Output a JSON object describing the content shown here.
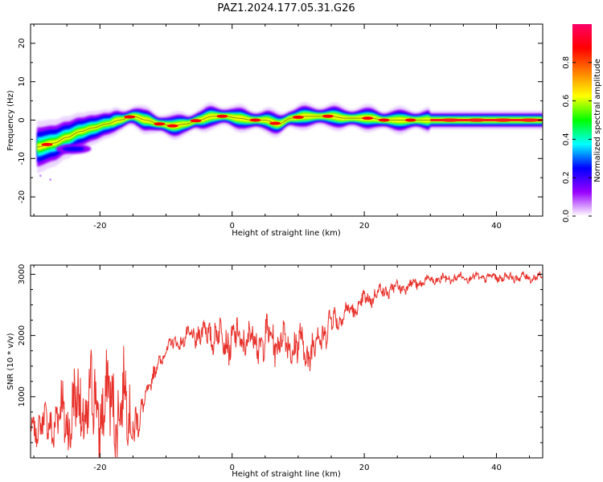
{
  "figure": {
    "title": "PAZ1.2024.177.05.31.G26"
  },
  "chart_data": [
    {
      "type": "heatmap",
      "xlabel": "Height of straight line (km)",
      "ylabel": "Frequency (Hz)",
      "xlim": [
        -30.5,
        47
      ],
      "ylim": [
        -25,
        25
      ],
      "xticks": [
        -20,
        0,
        20,
        40
      ],
      "yticks": [
        -20,
        -10,
        0,
        10,
        20
      ],
      "colorbar": {
        "label": "Normalized spectral amplitude",
        "range": [
          0,
          1
        ],
        "ticks": [
          "0.0",
          "0.2",
          "0.4",
          "0.6",
          "0.8"
        ],
        "colors": [
          "#ffffff",
          "#9900ff",
          "#0000ff",
          "#00ffff",
          "#00ff00",
          "#ffff00",
          "#ff7f00",
          "#ff0000",
          "#ff0066"
        ]
      },
      "ridge": {
        "x": [
          -29.5,
          -27,
          -25,
          -23,
          -21,
          -19,
          -17,
          -15,
          -13,
          -11,
          -9,
          -7,
          -5,
          -3,
          -1,
          1,
          3,
          5,
          7,
          9,
          11,
          13,
          15,
          17,
          19,
          21,
          23,
          25,
          27,
          30,
          35,
          40,
          47
        ],
        "y": [
          -7,
          -6,
          -4.5,
          -3,
          -2,
          -1,
          0,
          1,
          0,
          -1,
          -1.5,
          -1,
          0,
          1,
          1,
          0.5,
          0,
          0,
          -1,
          0.5,
          1,
          1,
          1,
          0.5,
          0.5,
          0.5,
          0,
          0,
          0,
          0,
          0,
          0,
          0
        ]
      }
    },
    {
      "type": "line",
      "xlabel": "Height of straight line (km)",
      "ylabel": "SNR (10 * v/v)",
      "xlim": [
        -30.5,
        47
      ],
      "ylim": [
        0,
        3150
      ],
      "xticks": [
        -20,
        0,
        20,
        40
      ],
      "yticks": [
        1000,
        2000,
        3000
      ],
      "color": "#e8302a",
      "envelope": {
        "x": [
          -30.5,
          -28,
          -26,
          -24,
          -22,
          -20,
          -18,
          -16,
          -15,
          -14,
          -13,
          -12,
          -10,
          -8,
          -6,
          -4,
          -2,
          0,
          2,
          4,
          6,
          8,
          10,
          12,
          14,
          16,
          18,
          20,
          22,
          24,
          26,
          28,
          30,
          35,
          40,
          47
        ],
        "mean": [
          500,
          550,
          650,
          750,
          800,
          850,
          850,
          850,
          650,
          500,
          1100,
          1300,
          1800,
          1900,
          2000,
          2050,
          2000,
          1900,
          1950,
          1900,
          1950,
          1900,
          1800,
          1750,
          2100,
          2300,
          2400,
          2550,
          2700,
          2750,
          2800,
          2850,
          2900,
          2950,
          2950,
          2950
        ],
        "amplitude": [
          250,
          400,
          700,
          900,
          1000,
          1000,
          950,
          900,
          600,
          350,
          150,
          200,
          150,
          150,
          200,
          300,
          350,
          400,
          400,
          400,
          400,
          400,
          450,
          450,
          350,
          250,
          200,
          200,
          150,
          150,
          130,
          120,
          110,
          90,
          90,
          90
        ]
      }
    }
  ]
}
